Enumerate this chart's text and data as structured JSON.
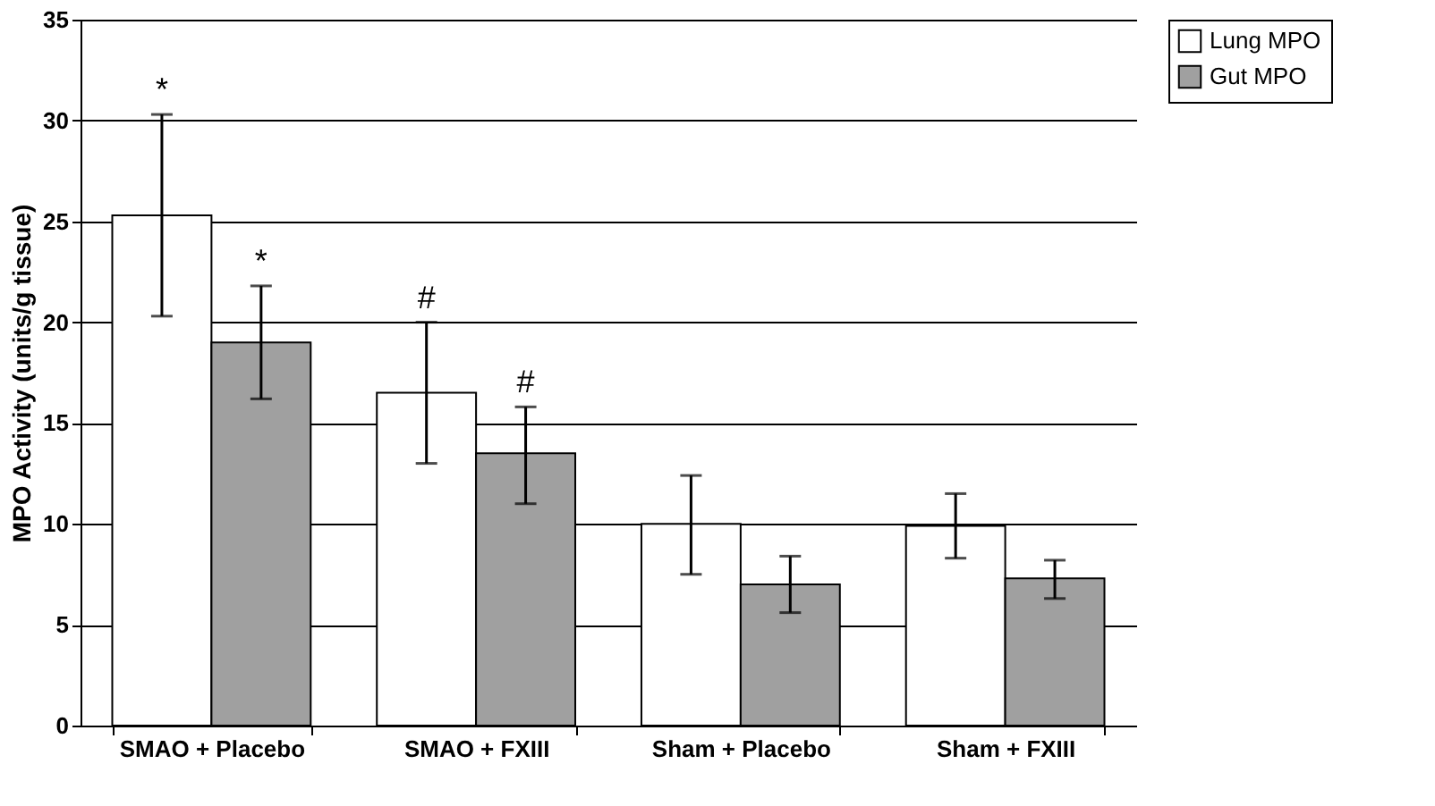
{
  "chart_data": {
    "type": "bar",
    "ylabel": "MPO Activity (units/g tissue)",
    "categories": [
      "SMAO + Placebo",
      "SMAO + FXIII",
      "Sham + Placebo",
      "Sham + FXIII"
    ],
    "series": [
      {
        "name": "Lung MPO",
        "color": "#ffffff",
        "values": [
          25.3,
          16.5,
          10,
          9.9
        ],
        "errors": [
          [
            20.3,
            30.3
          ],
          [
            13,
            20
          ],
          [
            7.5,
            12.4
          ],
          [
            8.3,
            11.5
          ]
        ]
      },
      {
        "name": "Gut MPO",
        "color": "#a0a0a0",
        "values": [
          19,
          13.5,
          7,
          7.3
        ],
        "errors": [
          [
            16.2,
            21.8
          ],
          [
            11,
            15.8
          ],
          [
            5.6,
            8.4
          ],
          [
            6.3,
            8.2
          ]
        ]
      }
    ],
    "annotations": [
      "*",
      "*",
      "#",
      "#"
    ],
    "ylim": [
      0,
      35
    ],
    "yticks": [
      0,
      5,
      10,
      15,
      20,
      25,
      30,
      35
    ],
    "grid": "y",
    "legend": "right"
  }
}
